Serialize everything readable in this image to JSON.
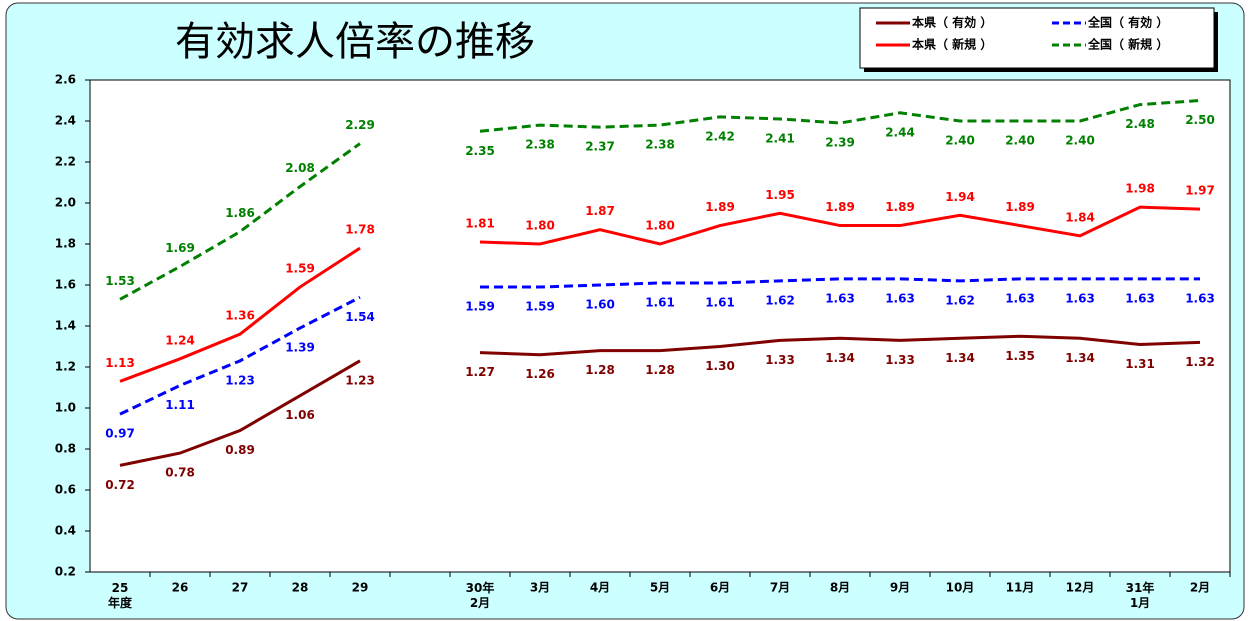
{
  "chart_data": {
    "type": "line",
    "title": "有効求人倍率の推移",
    "categories": [
      "25\n年度",
      "26",
      "27",
      "28",
      "29",
      null,
      "30年\n2月",
      "3月",
      "4月",
      "5月",
      "6月",
      "7月",
      "8月",
      "9月",
      "10月",
      "11月",
      "12月",
      "31年\n1月",
      "2月"
    ],
    "series": [
      {
        "name": "本県（ 有効 ）",
        "color": "#800000",
        "dash": false,
        "values": [
          0.72,
          0.78,
          0.89,
          1.06,
          1.23,
          null,
          1.27,
          1.26,
          1.28,
          1.28,
          1.3,
          1.33,
          1.34,
          1.33,
          1.34,
          1.35,
          1.34,
          1.31,
          1.32
        ],
        "value_labels": [
          "0.72",
          "0.78",
          "0.89",
          "1.06",
          "1.23",
          null,
          "1.27",
          "1.26",
          "1.28",
          "1.28",
          "1.30",
          "1.33",
          "1.34",
          "1.33",
          "1.34",
          "1.35",
          "1.34",
          "1.31",
          "1.32"
        ]
      },
      {
        "name": "全国（ 有効 ）",
        "color": "#0000ff",
        "dash": true,
        "values": [
          0.97,
          1.11,
          1.23,
          1.39,
          1.54,
          null,
          1.59,
          1.59,
          1.6,
          1.61,
          1.61,
          1.62,
          1.63,
          1.63,
          1.62,
          1.63,
          1.63,
          1.63,
          1.63
        ],
        "value_labels": [
          "0.97",
          "1.11",
          "1.23",
          "1.39",
          "1.54",
          null,
          "1.59",
          "1.59",
          "1.60",
          "1.61",
          "1.61",
          "1.62",
          "1.63",
          "1.63",
          "1.62",
          "1.63",
          "1.63",
          "1.63",
          "1.63"
        ]
      },
      {
        "name": "本県（ 新規 ）",
        "color": "#ff0000",
        "dash": false,
        "values": [
          1.13,
          1.24,
          1.36,
          1.59,
          1.78,
          null,
          1.81,
          1.8,
          1.87,
          1.8,
          1.89,
          1.95,
          1.89,
          1.89,
          1.94,
          1.89,
          1.84,
          1.98,
          1.97
        ],
        "value_labels": [
          "1.13",
          "1.24",
          "1.36",
          "1.59",
          "1.78",
          null,
          "1.81",
          "1.80",
          "1.87",
          "1.80",
          "1.89",
          "1.95",
          "1.89",
          "1.89",
          "1.94",
          "1.89",
          "1.84",
          "1.98",
          "1.97"
        ]
      },
      {
        "name": "全国（ 新規 ）",
        "color": "#008000",
        "dash": true,
        "values": [
          1.53,
          1.69,
          1.86,
          2.08,
          2.29,
          null,
          2.35,
          2.38,
          2.37,
          2.38,
          2.42,
          2.41,
          2.39,
          2.44,
          2.4,
          2.4,
          2.4,
          2.48,
          2.5
        ],
        "value_labels": [
          "1.53",
          "1.69",
          "1.86",
          "2.08",
          "2.29",
          null,
          "2.35",
          "2.38",
          "2.37",
          "2.38",
          "2.42",
          "2.41",
          "2.39",
          "2.44",
          "2.40",
          "2.40",
          "2.40",
          "2.48",
          "2.50"
        ]
      }
    ],
    "ylim": [
      0.2,
      2.6
    ],
    "yticks": [
      0.2,
      0.4,
      0.6,
      0.8,
      {
        "value": 1.0,
        "label": "1.0"
      },
      1.2,
      1.4,
      1.6,
      1.8,
      {
        "value": 2.0,
        "label": "2.0"
      },
      2.2,
      2.4,
      2.6
    ]
  }
}
